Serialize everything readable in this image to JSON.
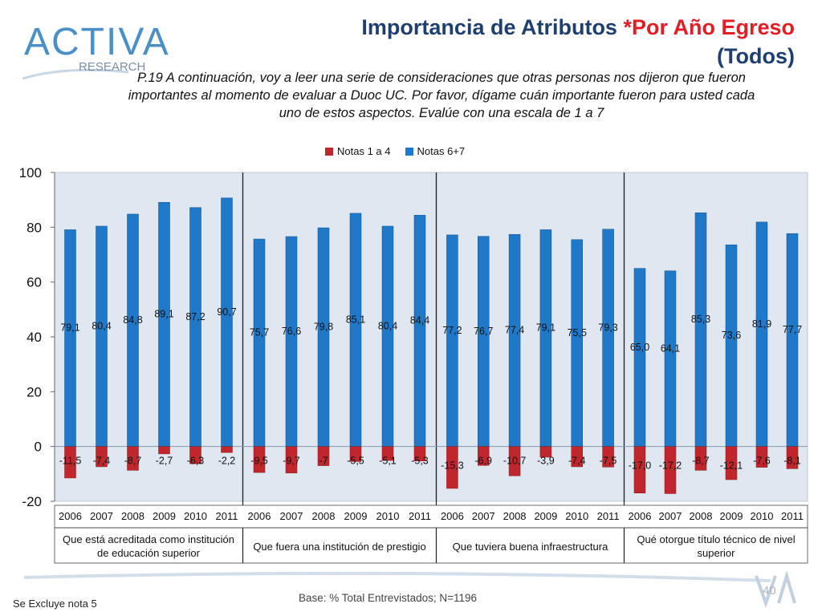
{
  "header": {
    "title_main": "Importancia de Atributos ",
    "title_accent": "*Por Año Egreso",
    "title_line2": "(Todos)",
    "question": "P.19 A continuación, voy a leer una serie de consideraciones que otras personas nos dijeron que fueron importantes al momento de evaluar a Duoc UC. Por favor, dígame cuán importante fueron para usted cada uno de estos aspectos. Evalúe con una escala de 1 a 7"
  },
  "logo": {
    "word": "ACTIVA",
    "sub": "RESEARCH"
  },
  "colors": {
    "red": "#c0272d",
    "blue": "#1f78c8",
    "title": "#1f3f6f",
    "panel": "#dfe7f1"
  },
  "chart_data": {
    "type": "bar",
    "title": "",
    "ylim": [
      -20,
      100
    ],
    "yticks": [
      -20,
      0,
      20,
      40,
      60,
      80,
      100
    ],
    "legend": [
      {
        "name": "Notas 1 a 4",
        "color": "#c0272d"
      },
      {
        "name": "Notas 6+7",
        "color": "#1f78c8"
      }
    ],
    "legend_position": "top-center",
    "groups": [
      {
        "label": "Que está acreditada como institución de educación superior",
        "years": [
          "2006",
          "2007",
          "2008",
          "2009",
          "2010",
          "2011"
        ],
        "notas_6_7": [
          79.1,
          80.4,
          84.8,
          89.1,
          87.2,
          90.7
        ],
        "notas_6_7_labels": [
          "79,1",
          "80,4",
          "84,8",
          "89,1",
          "87,2",
          "90,7"
        ],
        "notas_1_4": [
          -11.5,
          -7.4,
          -8.7,
          -2.7,
          -6.3,
          -2.2
        ],
        "notas_1_4_labels": [
          "-11,5",
          "-7,4",
          "-8,7",
          "-2,7",
          "-6,3",
          "-2,2"
        ]
      },
      {
        "label": "Que fuera una institución de prestigio",
        "years": [
          "2006",
          "2007",
          "2008",
          "2009",
          "2010",
          "2011"
        ],
        "notas_6_7": [
          75.7,
          76.6,
          79.8,
          85.1,
          80.4,
          84.4
        ],
        "notas_6_7_labels": [
          "75,7",
          "76,6",
          "79,8",
          "85,1",
          "80,4",
          "84,4"
        ],
        "notas_1_4": [
          -9.5,
          -9.7,
          -7,
          -5.5,
          -5.1,
          -5.3
        ],
        "notas_1_4_labels": [
          "-9,5",
          "-9,7",
          "-7",
          "-5,5",
          "-5,1",
          "-5,3"
        ]
      },
      {
        "label": "Que tuviera buena infraestructura",
        "years": [
          "2006",
          "2007",
          "2008",
          "2009",
          "2010",
          "2011"
        ],
        "notas_6_7": [
          77.2,
          76.7,
          77.4,
          79.1,
          75.5,
          79.3
        ],
        "notas_6_7_labels": [
          "77,2",
          "76,7",
          "77,4",
          "79,1",
          "75,5",
          "79,3"
        ],
        "notas_1_4": [
          -15.3,
          -6.9,
          -10.7,
          -3.9,
          -7.4,
          -7.5
        ],
        "notas_1_4_labels": [
          "-15,3",
          "-6,9",
          "-10,7",
          "-3,9",
          "-7,4",
          "-7,5"
        ]
      },
      {
        "label": "Qué otorgue título técnico de nivel superior",
        "years": [
          "2006",
          "2007",
          "2008",
          "2009",
          "2010",
          "2011"
        ],
        "notas_6_7": [
          65.0,
          64.1,
          85.3,
          73.6,
          81.9,
          77.7
        ],
        "notas_6_7_labels": [
          "65,0",
          "64,1",
          "85,3",
          "73,6",
          "81,9",
          "77,7"
        ],
        "notas_1_4": [
          -17.0,
          -17.2,
          -8.7,
          -12.1,
          -7.6,
          -8.1
        ],
        "notas_1_4_labels": [
          "-17,0",
          "-17,2",
          "-8,7",
          "-12,1",
          "-7,6",
          "-8,1"
        ]
      }
    ]
  },
  "footer": {
    "note": "Se Excluye nota 5",
    "base": "Base: % Total Entrevistados; N=1196",
    "page": "40"
  }
}
